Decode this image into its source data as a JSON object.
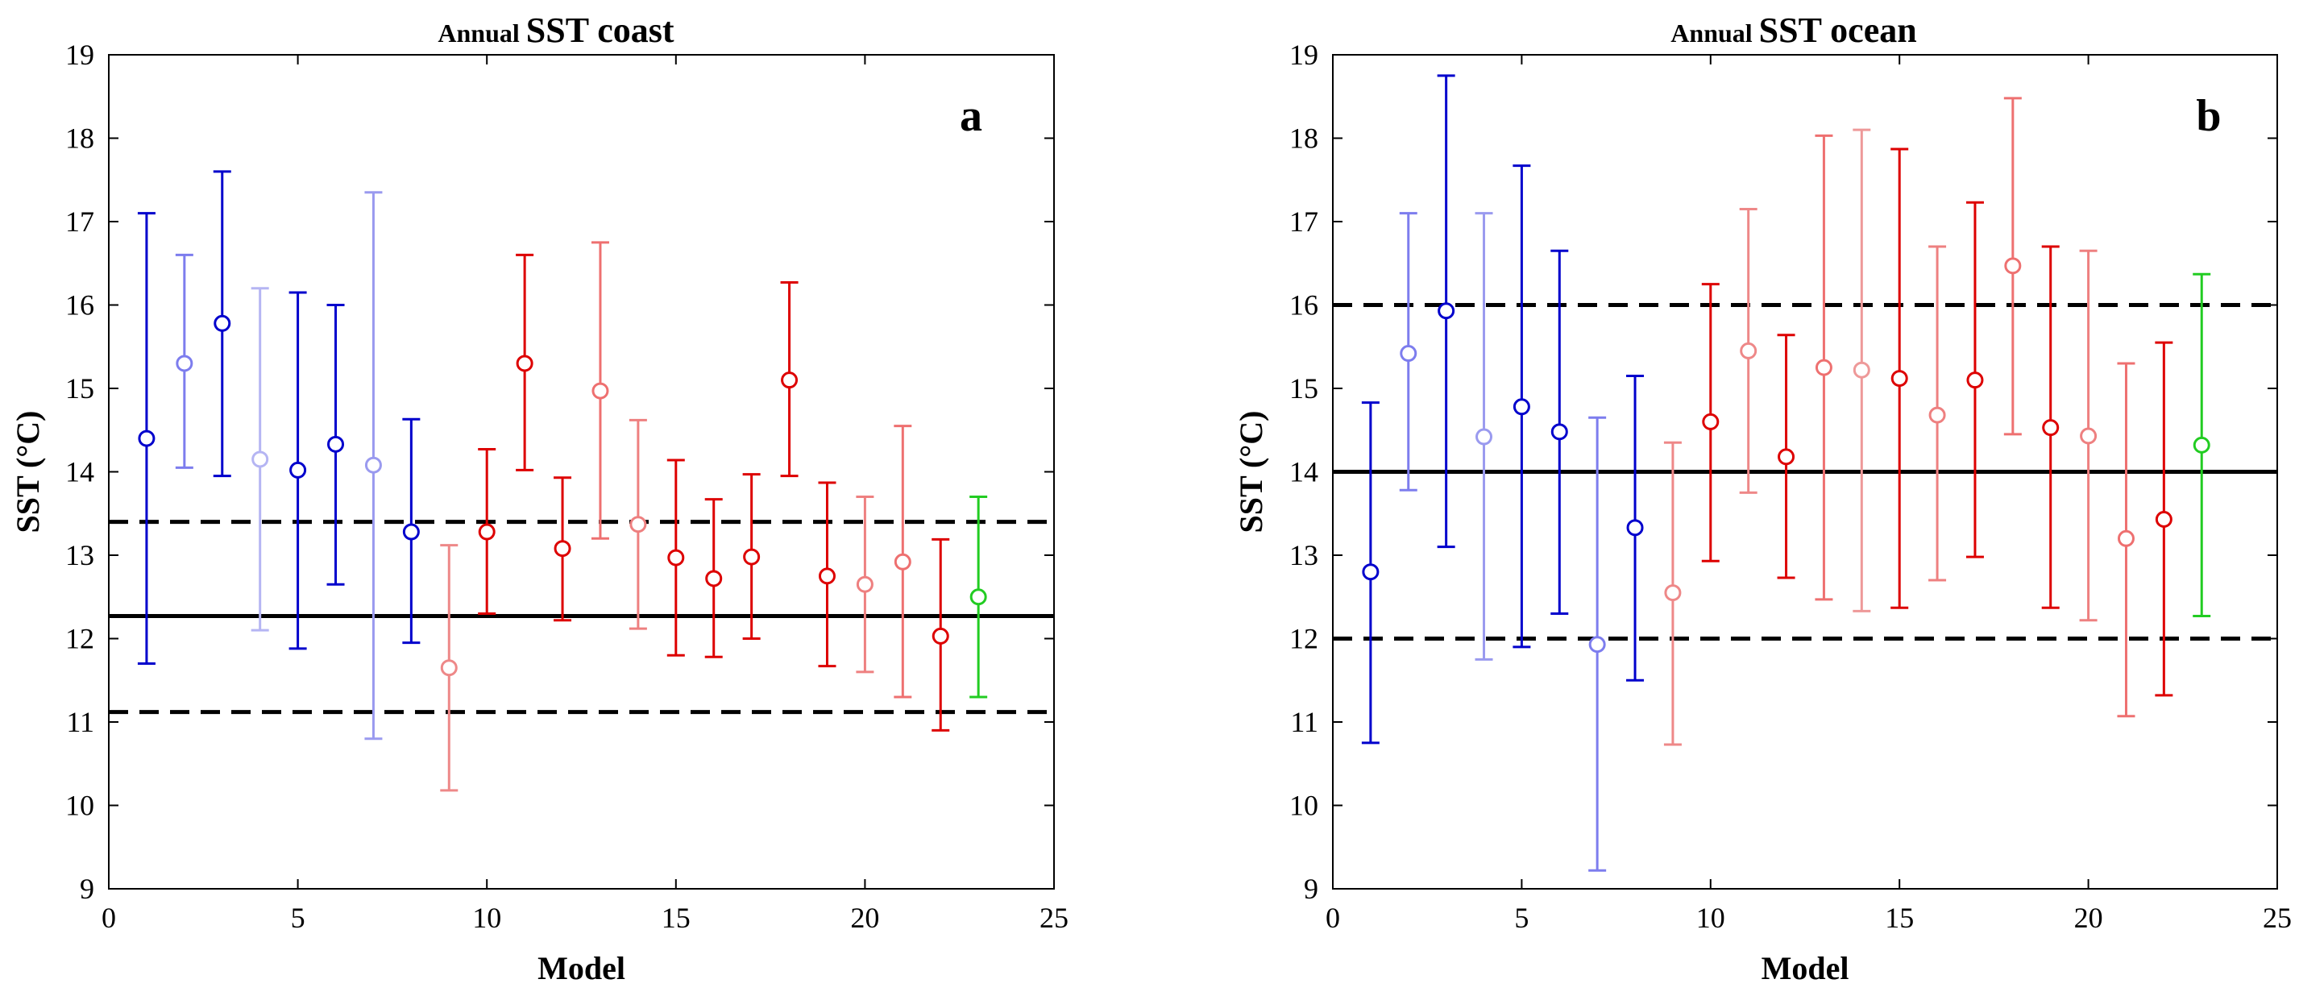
{
  "chart_data": [
    {
      "type": "errorbar",
      "panel_label": "a",
      "title_prefix": "Annual",
      "title_main": "SST coast",
      "xlabel": "Model",
      "ylabel": "SST (°C)",
      "xlim": [
        0,
        25
      ],
      "ylim": [
        9,
        19
      ],
      "xticks": [
        0,
        5,
        10,
        15,
        20,
        25
      ],
      "yticks": [
        9,
        10,
        11,
        12,
        13,
        14,
        15,
        16,
        17,
        18,
        19
      ],
      "reference_lines": [
        {
          "style": "solid",
          "y": 12.27
        },
        {
          "style": "dashed",
          "y": 13.4
        },
        {
          "style": "dashed",
          "y": 11.12
        }
      ],
      "points": [
        {
          "x": 1,
          "y": 14.4,
          "low": 11.7,
          "high": 17.1,
          "color": "#0000cc"
        },
        {
          "x": 2,
          "y": 15.3,
          "low": 14.05,
          "high": 16.6,
          "color": "#7d7dee"
        },
        {
          "x": 3,
          "y": 15.78,
          "low": 13.95,
          "high": 17.6,
          "color": "#0000cc"
        },
        {
          "x": 4,
          "y": 14.15,
          "low": 12.1,
          "high": 16.2,
          "color": "#b5b5f3"
        },
        {
          "x": 5,
          "y": 14.02,
          "low": 11.88,
          "high": 16.15,
          "color": "#0000cc"
        },
        {
          "x": 6,
          "y": 14.33,
          "low": 12.65,
          "high": 16.0,
          "color": "#0000cc"
        },
        {
          "x": 7,
          "y": 14.08,
          "low": 10.8,
          "high": 17.35,
          "color": "#9a9aef"
        },
        {
          "x": 8,
          "y": 13.28,
          "low": 11.95,
          "high": 14.63,
          "color": "#0000cc"
        },
        {
          "x": 9,
          "y": 11.65,
          "low": 10.18,
          "high": 13.12,
          "color": "#ee8888"
        },
        {
          "x": 10,
          "y": 13.28,
          "low": 12.3,
          "high": 14.27,
          "color": "#dd0000"
        },
        {
          "x": 11,
          "y": 15.3,
          "low": 14.02,
          "high": 16.6,
          "color": "#dd0000"
        },
        {
          "x": 12,
          "y": 13.08,
          "low": 12.22,
          "high": 13.93,
          "color": "#dd0000"
        },
        {
          "x": 13,
          "y": 14.97,
          "low": 13.2,
          "high": 16.75,
          "color": "#ee7070"
        },
        {
          "x": 14,
          "y": 13.37,
          "low": 12.12,
          "high": 14.62,
          "color": "#ee8080"
        },
        {
          "x": 15,
          "y": 12.97,
          "low": 11.8,
          "high": 14.14,
          "color": "#dd0000"
        },
        {
          "x": 16,
          "y": 12.72,
          "low": 11.78,
          "high": 13.67,
          "color": "#dd0000"
        },
        {
          "x": 17,
          "y": 12.98,
          "low": 12.0,
          "high": 13.97,
          "color": "#dd0000"
        },
        {
          "x": 18,
          "y": 15.1,
          "low": 13.95,
          "high": 16.27,
          "color": "#dd0000"
        },
        {
          "x": 19,
          "y": 12.75,
          "low": 11.67,
          "high": 13.87,
          "color": "#dd0000"
        },
        {
          "x": 20,
          "y": 12.65,
          "low": 11.6,
          "high": 13.7,
          "color": "#ee8080"
        },
        {
          "x": 21,
          "y": 12.92,
          "low": 11.3,
          "high": 14.55,
          "color": "#ee7070"
        },
        {
          "x": 22,
          "y": 12.03,
          "low": 10.9,
          "high": 13.19,
          "color": "#dd0000"
        },
        {
          "x": 23,
          "y": 12.5,
          "low": 11.3,
          "high": 13.7,
          "color": "#22cc22"
        }
      ]
    },
    {
      "type": "errorbar",
      "panel_label": "b",
      "title_prefix": "Annual",
      "title_main": "SST ocean",
      "xlabel": "Model",
      "ylabel": "SST (°C)",
      "xlim": [
        0,
        25
      ],
      "ylim": [
        9,
        19
      ],
      "xticks": [
        0,
        5,
        10,
        15,
        20,
        25
      ],
      "yticks": [
        9,
        10,
        11,
        12,
        13,
        14,
        15,
        16,
        17,
        18,
        19
      ],
      "reference_lines": [
        {
          "style": "solid",
          "y": 14.0
        },
        {
          "style": "dashed",
          "y": 16.0
        },
        {
          "style": "dashed",
          "y": 12.0
        }
      ],
      "points": [
        {
          "x": 1,
          "y": 12.8,
          "low": 10.75,
          "high": 14.83,
          "color": "#0000cc"
        },
        {
          "x": 2,
          "y": 15.42,
          "low": 13.78,
          "high": 17.1,
          "color": "#7d7dee"
        },
        {
          "x": 3,
          "y": 15.93,
          "low": 13.1,
          "high": 18.75,
          "color": "#0000cc"
        },
        {
          "x": 4,
          "y": 14.42,
          "low": 11.75,
          "high": 17.1,
          "color": "#9a9aef"
        },
        {
          "x": 5,
          "y": 14.78,
          "low": 11.9,
          "high": 17.67,
          "color": "#0000cc"
        },
        {
          "x": 6,
          "y": 14.48,
          "low": 12.3,
          "high": 16.65,
          "color": "#0000cc"
        },
        {
          "x": 7,
          "y": 11.93,
          "low": 9.22,
          "high": 14.65,
          "color": "#7d7dee"
        },
        {
          "x": 8,
          "y": 13.33,
          "low": 11.5,
          "high": 15.15,
          "color": "#0000cc"
        },
        {
          "x": 9,
          "y": 12.55,
          "low": 10.73,
          "high": 14.35,
          "color": "#ee8888"
        },
        {
          "x": 10,
          "y": 14.6,
          "low": 12.93,
          "high": 16.25,
          "color": "#dd0000"
        },
        {
          "x": 11,
          "y": 15.45,
          "low": 13.75,
          "high": 17.15,
          "color": "#ee8888"
        },
        {
          "x": 12,
          "y": 14.18,
          "low": 12.73,
          "high": 15.64,
          "color": "#dd0000"
        },
        {
          "x": 13,
          "y": 15.25,
          "low": 12.47,
          "high": 18.03,
          "color": "#ee7070"
        },
        {
          "x": 14,
          "y": 15.22,
          "low": 12.33,
          "high": 18.1,
          "color": "#ee9999"
        },
        {
          "x": 15,
          "y": 15.12,
          "low": 12.37,
          "high": 17.87,
          "color": "#dd0000"
        },
        {
          "x": 16,
          "y": 14.68,
          "low": 12.7,
          "high": 16.7,
          "color": "#ee8080"
        },
        {
          "x": 17,
          "y": 15.1,
          "low": 12.98,
          "high": 17.23,
          "color": "#dd0000"
        },
        {
          "x": 18,
          "y": 16.47,
          "low": 14.45,
          "high": 18.48,
          "color": "#ee7070"
        },
        {
          "x": 19,
          "y": 14.53,
          "low": 12.37,
          "high": 16.7,
          "color": "#dd0000"
        },
        {
          "x": 20,
          "y": 14.43,
          "low": 12.22,
          "high": 16.65,
          "color": "#ee8080"
        },
        {
          "x": 21,
          "y": 13.2,
          "low": 11.07,
          "high": 15.3,
          "color": "#ee7070"
        },
        {
          "x": 22,
          "y": 13.43,
          "low": 11.32,
          "high": 15.55,
          "color": "#dd0000"
        },
        {
          "x": 23,
          "y": 14.32,
          "low": 12.27,
          "high": 16.37,
          "color": "#22cc22"
        }
      ]
    }
  ]
}
